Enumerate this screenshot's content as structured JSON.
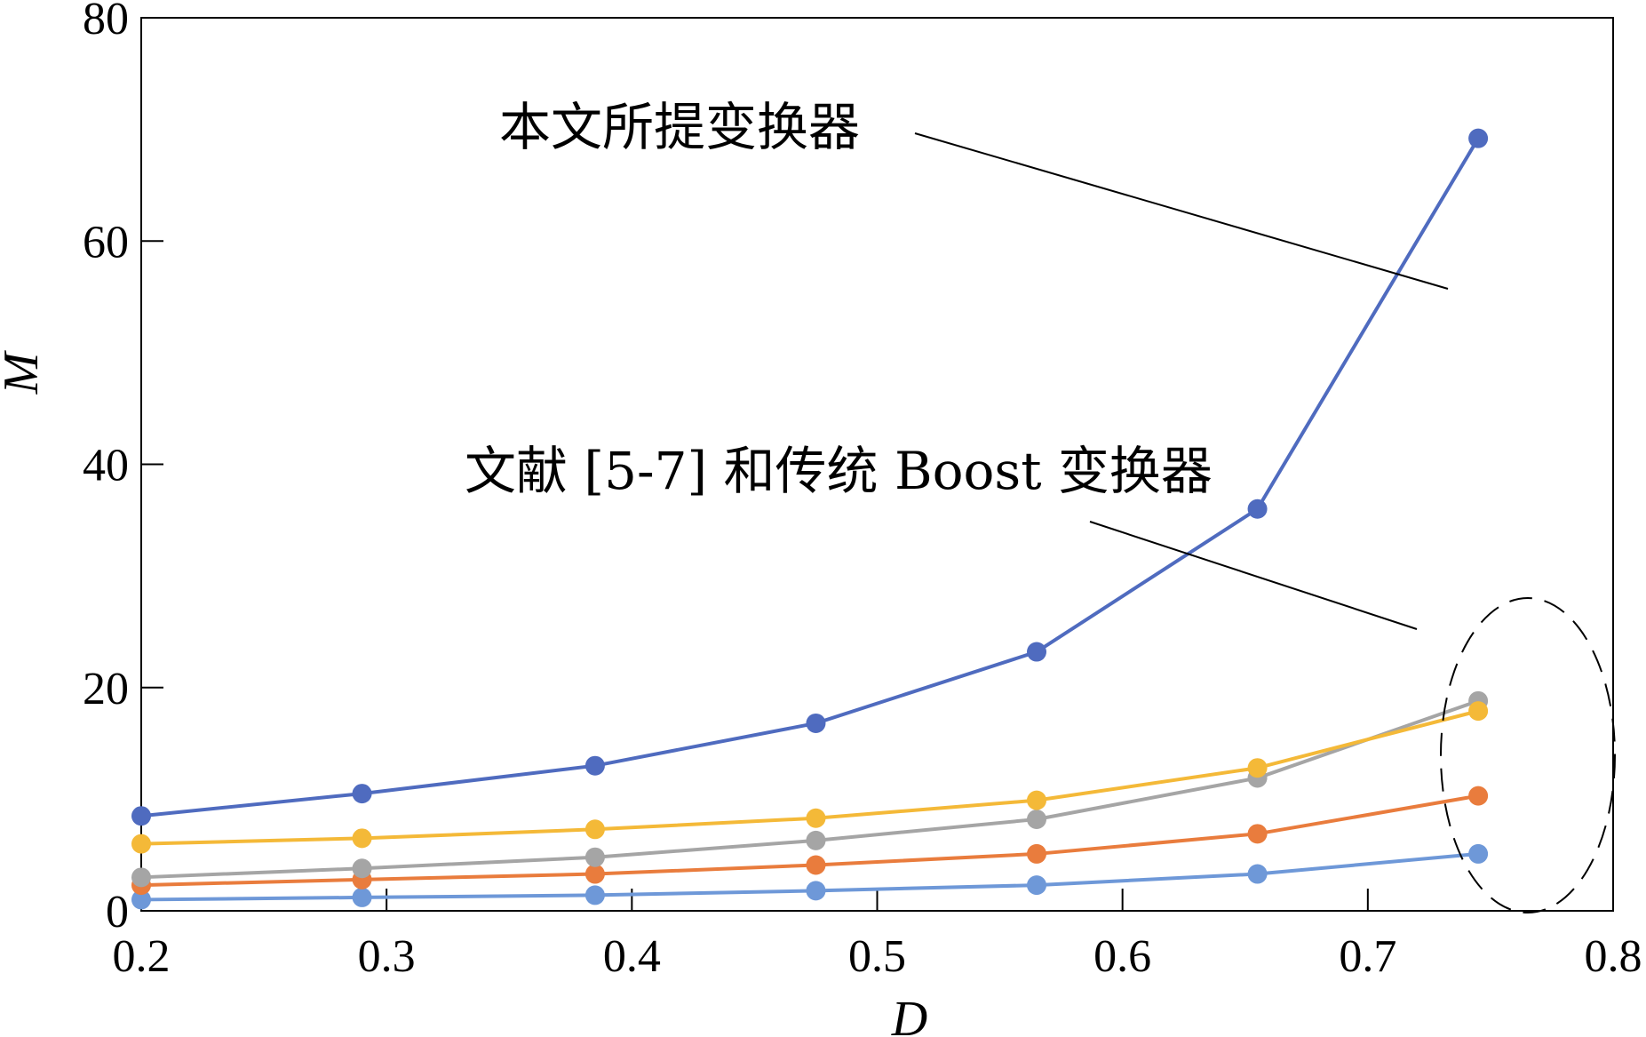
{
  "chart_data": {
    "type": "line",
    "xlabel": "D",
    "ylabel": "M",
    "xlim": [
      0.2,
      0.8
    ],
    "ylim": [
      0,
      80
    ],
    "xticks": [
      "0.2",
      "0.3",
      "0.4",
      "0.5",
      "0.6",
      "0.7",
      "0.8"
    ],
    "yticks": [
      "0",
      "20",
      "40",
      "60",
      "80"
    ],
    "grid": false,
    "x": [
      0.2,
      0.29,
      0.385,
      0.475,
      0.565,
      0.655,
      0.745
    ],
    "series": [
      {
        "color": "#4f6bbf",
        "values": [
          8.5,
          10.5,
          13.0,
          16.8,
          23.2,
          36.0,
          69.2
        ]
      },
      {
        "color": "#f4b938",
        "values": [
          6.0,
          6.5,
          7.3,
          8.3,
          9.9,
          12.8,
          17.9
        ]
      },
      {
        "color": "#a5a5a5",
        "values": [
          3.0,
          3.8,
          4.8,
          6.3,
          8.2,
          11.9,
          18.8
        ]
      },
      {
        "color": "#e97c3d",
        "values": [
          2.3,
          2.8,
          3.3,
          4.1,
          5.1,
          6.9,
          10.3
        ]
      },
      {
        "color": "#6e98d8",
        "values": [
          1.0,
          1.2,
          1.4,
          1.8,
          2.3,
          3.3,
          5.1
        ]
      }
    ],
    "annotations": [
      {
        "text": "本文所提变换器"
      },
      {
        "text": "文献 [5-7] 和传统 Boost 变换器"
      }
    ]
  }
}
